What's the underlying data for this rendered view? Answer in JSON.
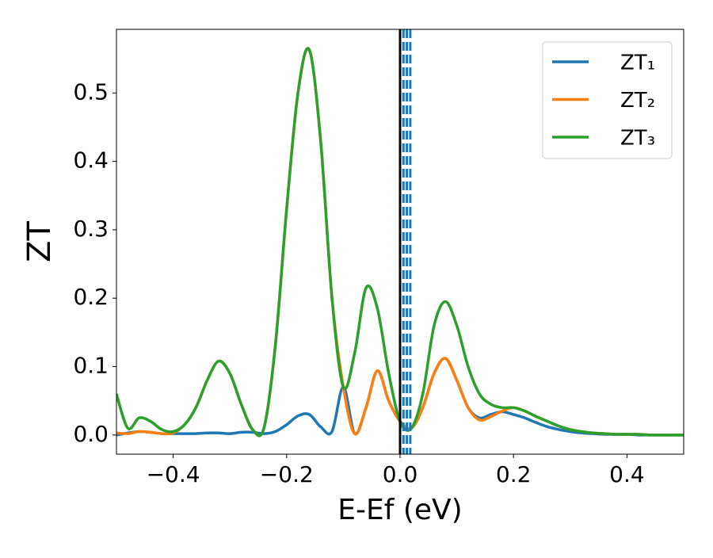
{
  "chart_data": {
    "type": "line",
    "xlabel": "E-Ef (eV)",
    "ylabel": "ZT",
    "x": [
      -0.5,
      -0.48,
      -0.46,
      -0.44,
      -0.42,
      -0.4,
      -0.38,
      -0.36,
      -0.34,
      -0.32,
      -0.3,
      -0.28,
      -0.26,
      -0.24,
      -0.22,
      -0.2,
      -0.18,
      -0.16,
      -0.14,
      -0.12,
      -0.1,
      -0.08,
      -0.06,
      -0.04,
      -0.02,
      0,
      0.02,
      0.04,
      0.06,
      0.08,
      0.1,
      0.12,
      0.14,
      0.16,
      0.18,
      0.2,
      0.22,
      0.24,
      0.26,
      0.28,
      0.3,
      0.32,
      0.34,
      0.36,
      0.38,
      0.4,
      0.42,
      0.44,
      0.46,
      0.48,
      0.5
    ],
    "series": [
      {
        "name": "ZT₁",
        "color": "#1f77b4",
        "values": [
          0,
          0.003,
          0.005,
          0.004,
          0.002,
          0.002,
          0.002,
          0.002,
          0.003,
          0.003,
          0.002,
          0.004,
          0.004,
          0.002,
          0.005,
          0.015,
          0.028,
          0.03,
          0.012,
          0.005,
          0.07,
          0.002,
          0.04,
          0.094,
          0.05,
          0.02,
          0.01,
          0.04,
          0.09,
          0.112,
          0.08,
          0.04,
          0.025,
          0.03,
          0.034,
          0.03,
          0.025,
          0.018,
          0.012,
          0.008,
          0.005,
          0.003,
          0.002,
          0.001,
          0.001,
          0.001,
          0,
          0,
          0,
          0,
          0
        ]
      },
      {
        "name": "ZT₂",
        "color": "#ff7f0e",
        "values": [
          0.003,
          0.002,
          0.005,
          0.004,
          0.002,
          0.003,
          0.015,
          0.04,
          0.08,
          0.108,
          0.09,
          0.045,
          0.008,
          0.01,
          0.13,
          0.33,
          0.5,
          0.563,
          0.43,
          0.2,
          0.07,
          0.002,
          0.04,
          0.094,
          0.05,
          0.02,
          0.01,
          0.04,
          0.09,
          0.112,
          0.08,
          0.04,
          0.022,
          0.027,
          0.035,
          0.04,
          0.035,
          0.027,
          0.02,
          0.013,
          0.008,
          0.005,
          0.003,
          0.002,
          0.001,
          0.001,
          0.001,
          0,
          0,
          0,
          0
        ]
      },
      {
        "name": "ZT₃",
        "color": "#2ca02c",
        "values": [
          0.06,
          0.01,
          0.025,
          0.02,
          0.008,
          0.005,
          0.015,
          0.04,
          0.08,
          0.108,
          0.09,
          0.045,
          0.008,
          0.01,
          0.13,
          0.33,
          0.5,
          0.563,
          0.43,
          0.2,
          0.07,
          0.12,
          0.215,
          0.185,
          0.09,
          0.02,
          0.01,
          0.06,
          0.16,
          0.195,
          0.16,
          0.1,
          0.06,
          0.045,
          0.04,
          0.04,
          0.035,
          0.027,
          0.02,
          0.013,
          0.008,
          0.005,
          0.003,
          0.002,
          0.001,
          0.001,
          0.001,
          0,
          0,
          0,
          0
        ]
      }
    ],
    "vlines": [
      {
        "x": 0,
        "color": "#000000",
        "style": "solid"
      },
      {
        "x": 0.006,
        "color": "#1f77b4",
        "style": "dashed"
      },
      {
        "x": 0.012,
        "color": "#1f77b4",
        "style": "dashed"
      },
      {
        "x": 0.018,
        "color": "#1f77b4",
        "style": "dashed"
      }
    ],
    "xlim": [
      -0.5,
      0.5
    ],
    "xticks": [
      {
        "value": -0.4,
        "label": "−0.4"
      },
      {
        "value": -0.2,
        "label": "−0.2"
      },
      {
        "value": 0,
        "label": "0.0"
      },
      0.2,
      0.4
    ],
    "ylim": [
      -0.028,
      0.593
    ],
    "yticks": [
      {
        "value": 0,
        "label": "0.0"
      },
      0.1,
      0.2,
      0.3,
      0.4,
      0.5
    ],
    "grid": false,
    "legend": "upper right"
  }
}
